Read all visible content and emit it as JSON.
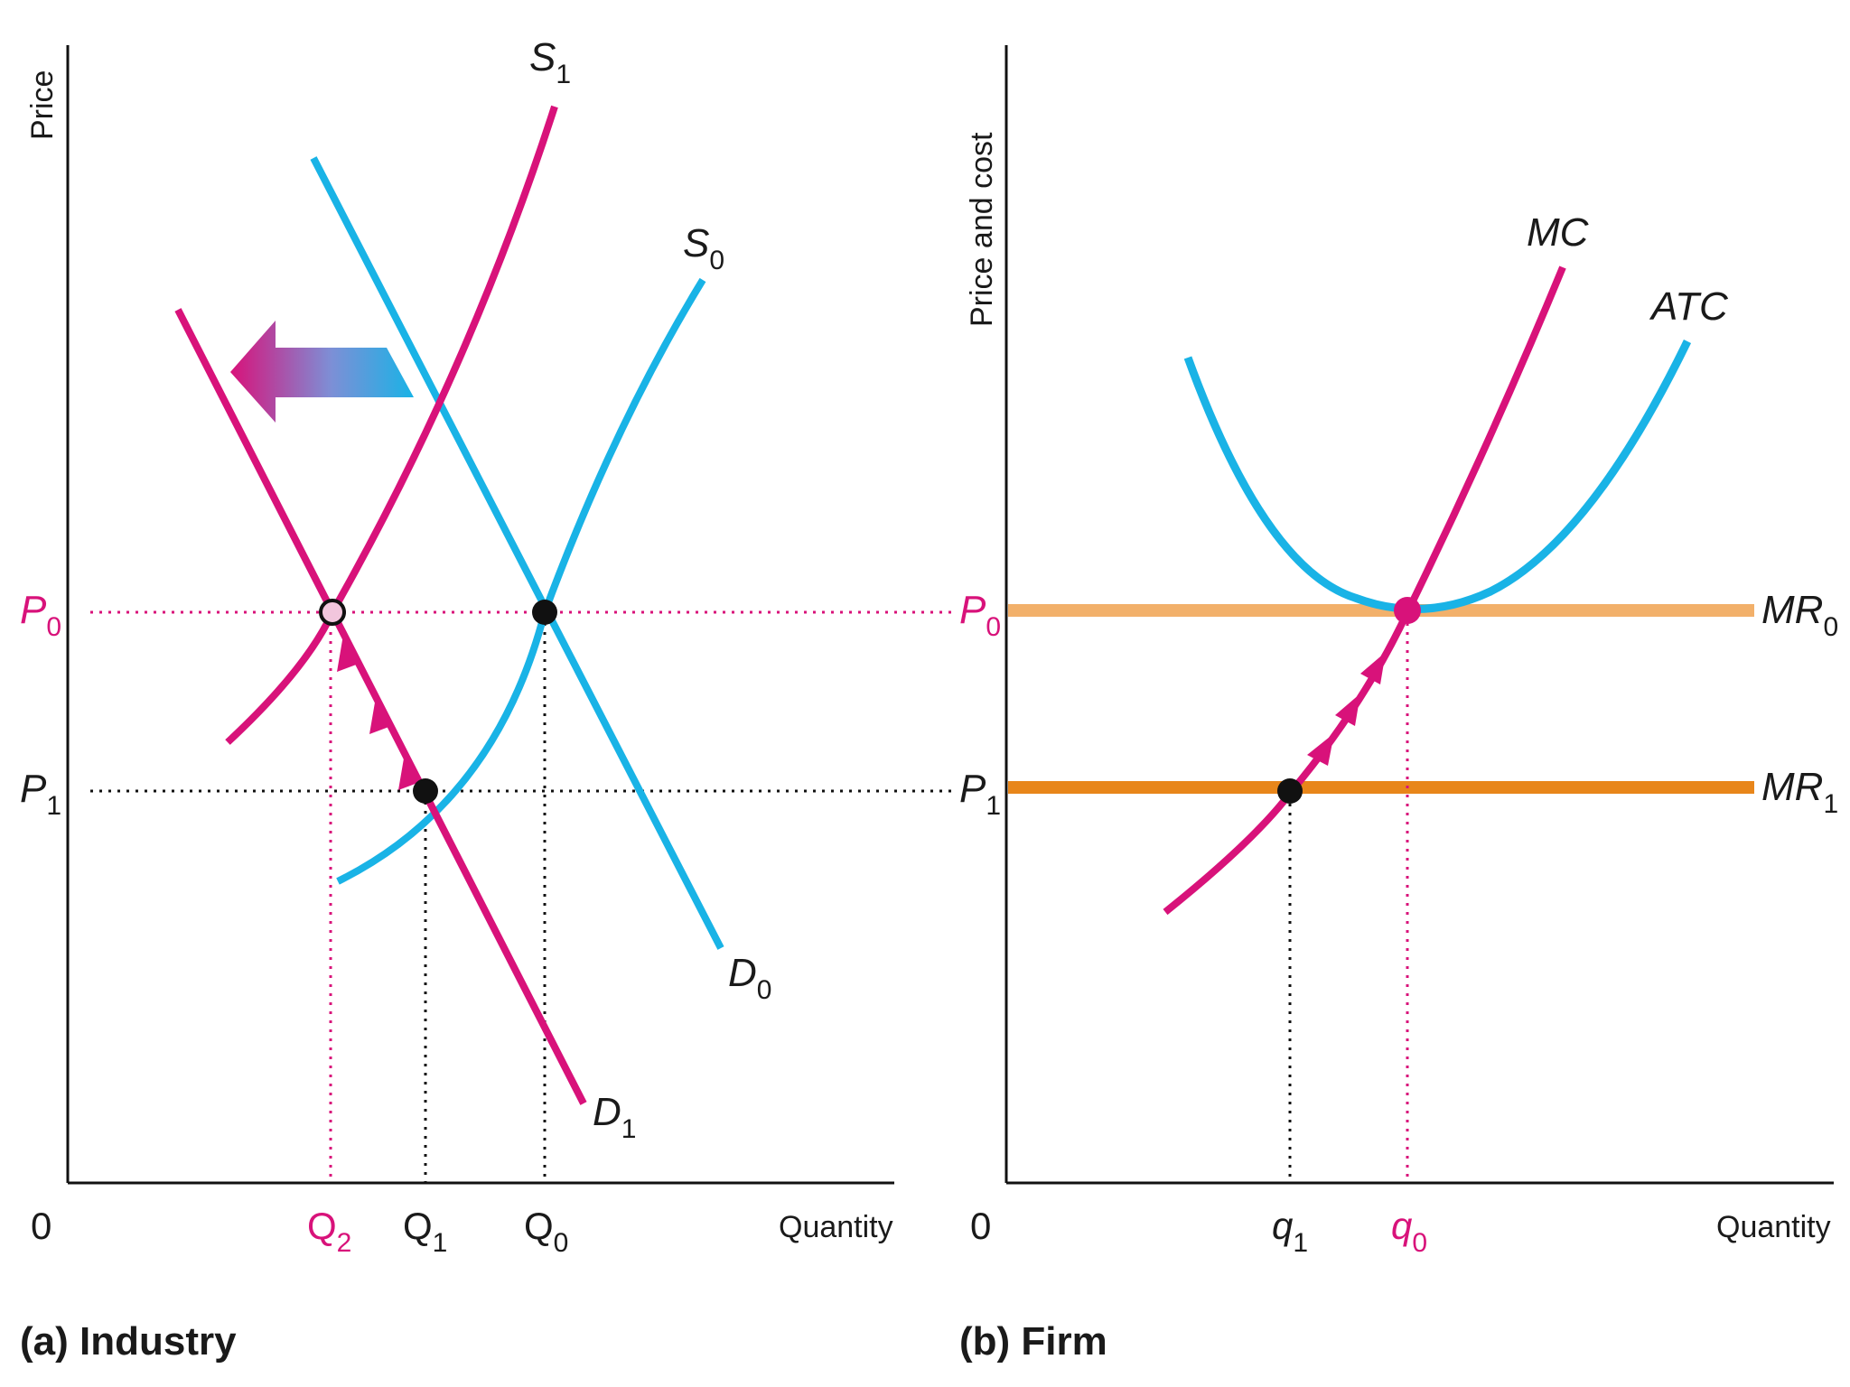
{
  "colors": {
    "pink": "#d8127a",
    "blue": "#19b3e6",
    "orange_light": "#f2b06a",
    "orange_dark": "#e8861a",
    "black": "#111111"
  },
  "industry": {
    "caption_prefix": "(a)",
    "caption_label": "Industry",
    "y_axis_title": "Price",
    "x_axis_title": "Quantity",
    "origin": "0",
    "price_labels": [
      {
        "main": "P",
        "sub": "0"
      },
      {
        "main": "P",
        "sub": "1"
      }
    ],
    "quantity_labels": [
      {
        "main": "Q",
        "sub": "2"
      },
      {
        "main": "Q",
        "sub": "1"
      },
      {
        "main": "Q",
        "sub": "0"
      }
    ],
    "curves": [
      {
        "main": "S",
        "sub": "1"
      },
      {
        "main": "S",
        "sub": "0"
      },
      {
        "main": "D",
        "sub": "0"
      },
      {
        "main": "D",
        "sub": "1"
      }
    ]
  },
  "firm": {
    "caption_prefix": "(b)",
    "caption_label": "Firm",
    "y_axis_title": "Price and cost",
    "x_axis_title": "Quantity",
    "origin": "0",
    "price_labels": [
      {
        "main": "P",
        "sub": "0"
      },
      {
        "main": "P",
        "sub": "1"
      }
    ],
    "quantity_labels": [
      {
        "main": "q",
        "sub": "1"
      },
      {
        "main": "q",
        "sub": "0"
      }
    ],
    "curves": [
      {
        "main": "MC",
        "sub": ""
      },
      {
        "main": "ATC",
        "sub": ""
      },
      {
        "main": "MR",
        "sub": "0"
      },
      {
        "main": "MR",
        "sub": "1"
      }
    ]
  }
}
